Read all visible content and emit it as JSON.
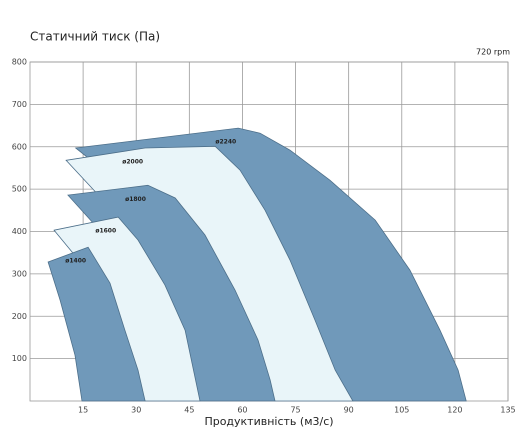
{
  "chart_data": {
    "type": "area",
    "title": "Статичний тиск (Па)",
    "subtitle": "720 rpm",
    "x_label": "Продуктивність (м3/с)",
    "xlim": [
      0,
      135
    ],
    "xticks": [
      15,
      30,
      45,
      60,
      75,
      90,
      105,
      120,
      135
    ],
    "ylim": [
      0,
      800
    ],
    "yticks": [
      100,
      200,
      300,
      400,
      500,
      600,
      700,
      800
    ],
    "grid": true,
    "series": [
      {
        "name": "ø1400",
        "color": "#7099ba",
        "x": [
          5.1,
          16.4,
          22.6,
          26.8,
          30.5,
          32.5,
          14.7,
          12.7,
          8.5
        ],
        "y": [
          328,
          363,
          278,
          167,
          73,
          0,
          0,
          108,
          238
        ]
      },
      {
        "name": "ø1600",
        "color": "#e9f5f9",
        "x": [
          6.8,
          24.9,
          30.5,
          38.1,
          43.8,
          48,
          32.5,
          15
        ],
        "y": [
          403,
          434,
          380,
          274,
          167,
          0,
          0,
          320
        ]
      },
      {
        "name": "ø1800",
        "color": "#7099ba",
        "x": [
          10.7,
          33.3,
          41,
          49.4,
          57.9,
          64.4,
          67.8,
          69.2,
          48,
          20
        ],
        "y": [
          486,
          509,
          479,
          392,
          262,
          144,
          50,
          0,
          0,
          400
        ]
      },
      {
        "name": "ø2000",
        "color": "#e9f5f9",
        "x": [
          10.2,
          32.5,
          52.3,
          59.3,
          66.4,
          73.4,
          80.5,
          86.2,
          91.2,
          69.2,
          20
        ],
        "y": [
          568,
          597,
          601,
          545,
          450,
          333,
          191,
          73,
          0,
          0,
          480
        ]
      },
      {
        "name": "ø2240",
        "color": "#7099ba",
        "x": [
          12.9,
          58.8,
          65,
          73.4,
          84.7,
          97.5,
          107.3,
          115.8,
          120.9,
          123.2,
          91.2,
          20
        ],
        "y": [
          597,
          644,
          632,
          592,
          521,
          427,
          309,
          167,
          73,
          0,
          0,
          550
        ]
      }
    ]
  }
}
